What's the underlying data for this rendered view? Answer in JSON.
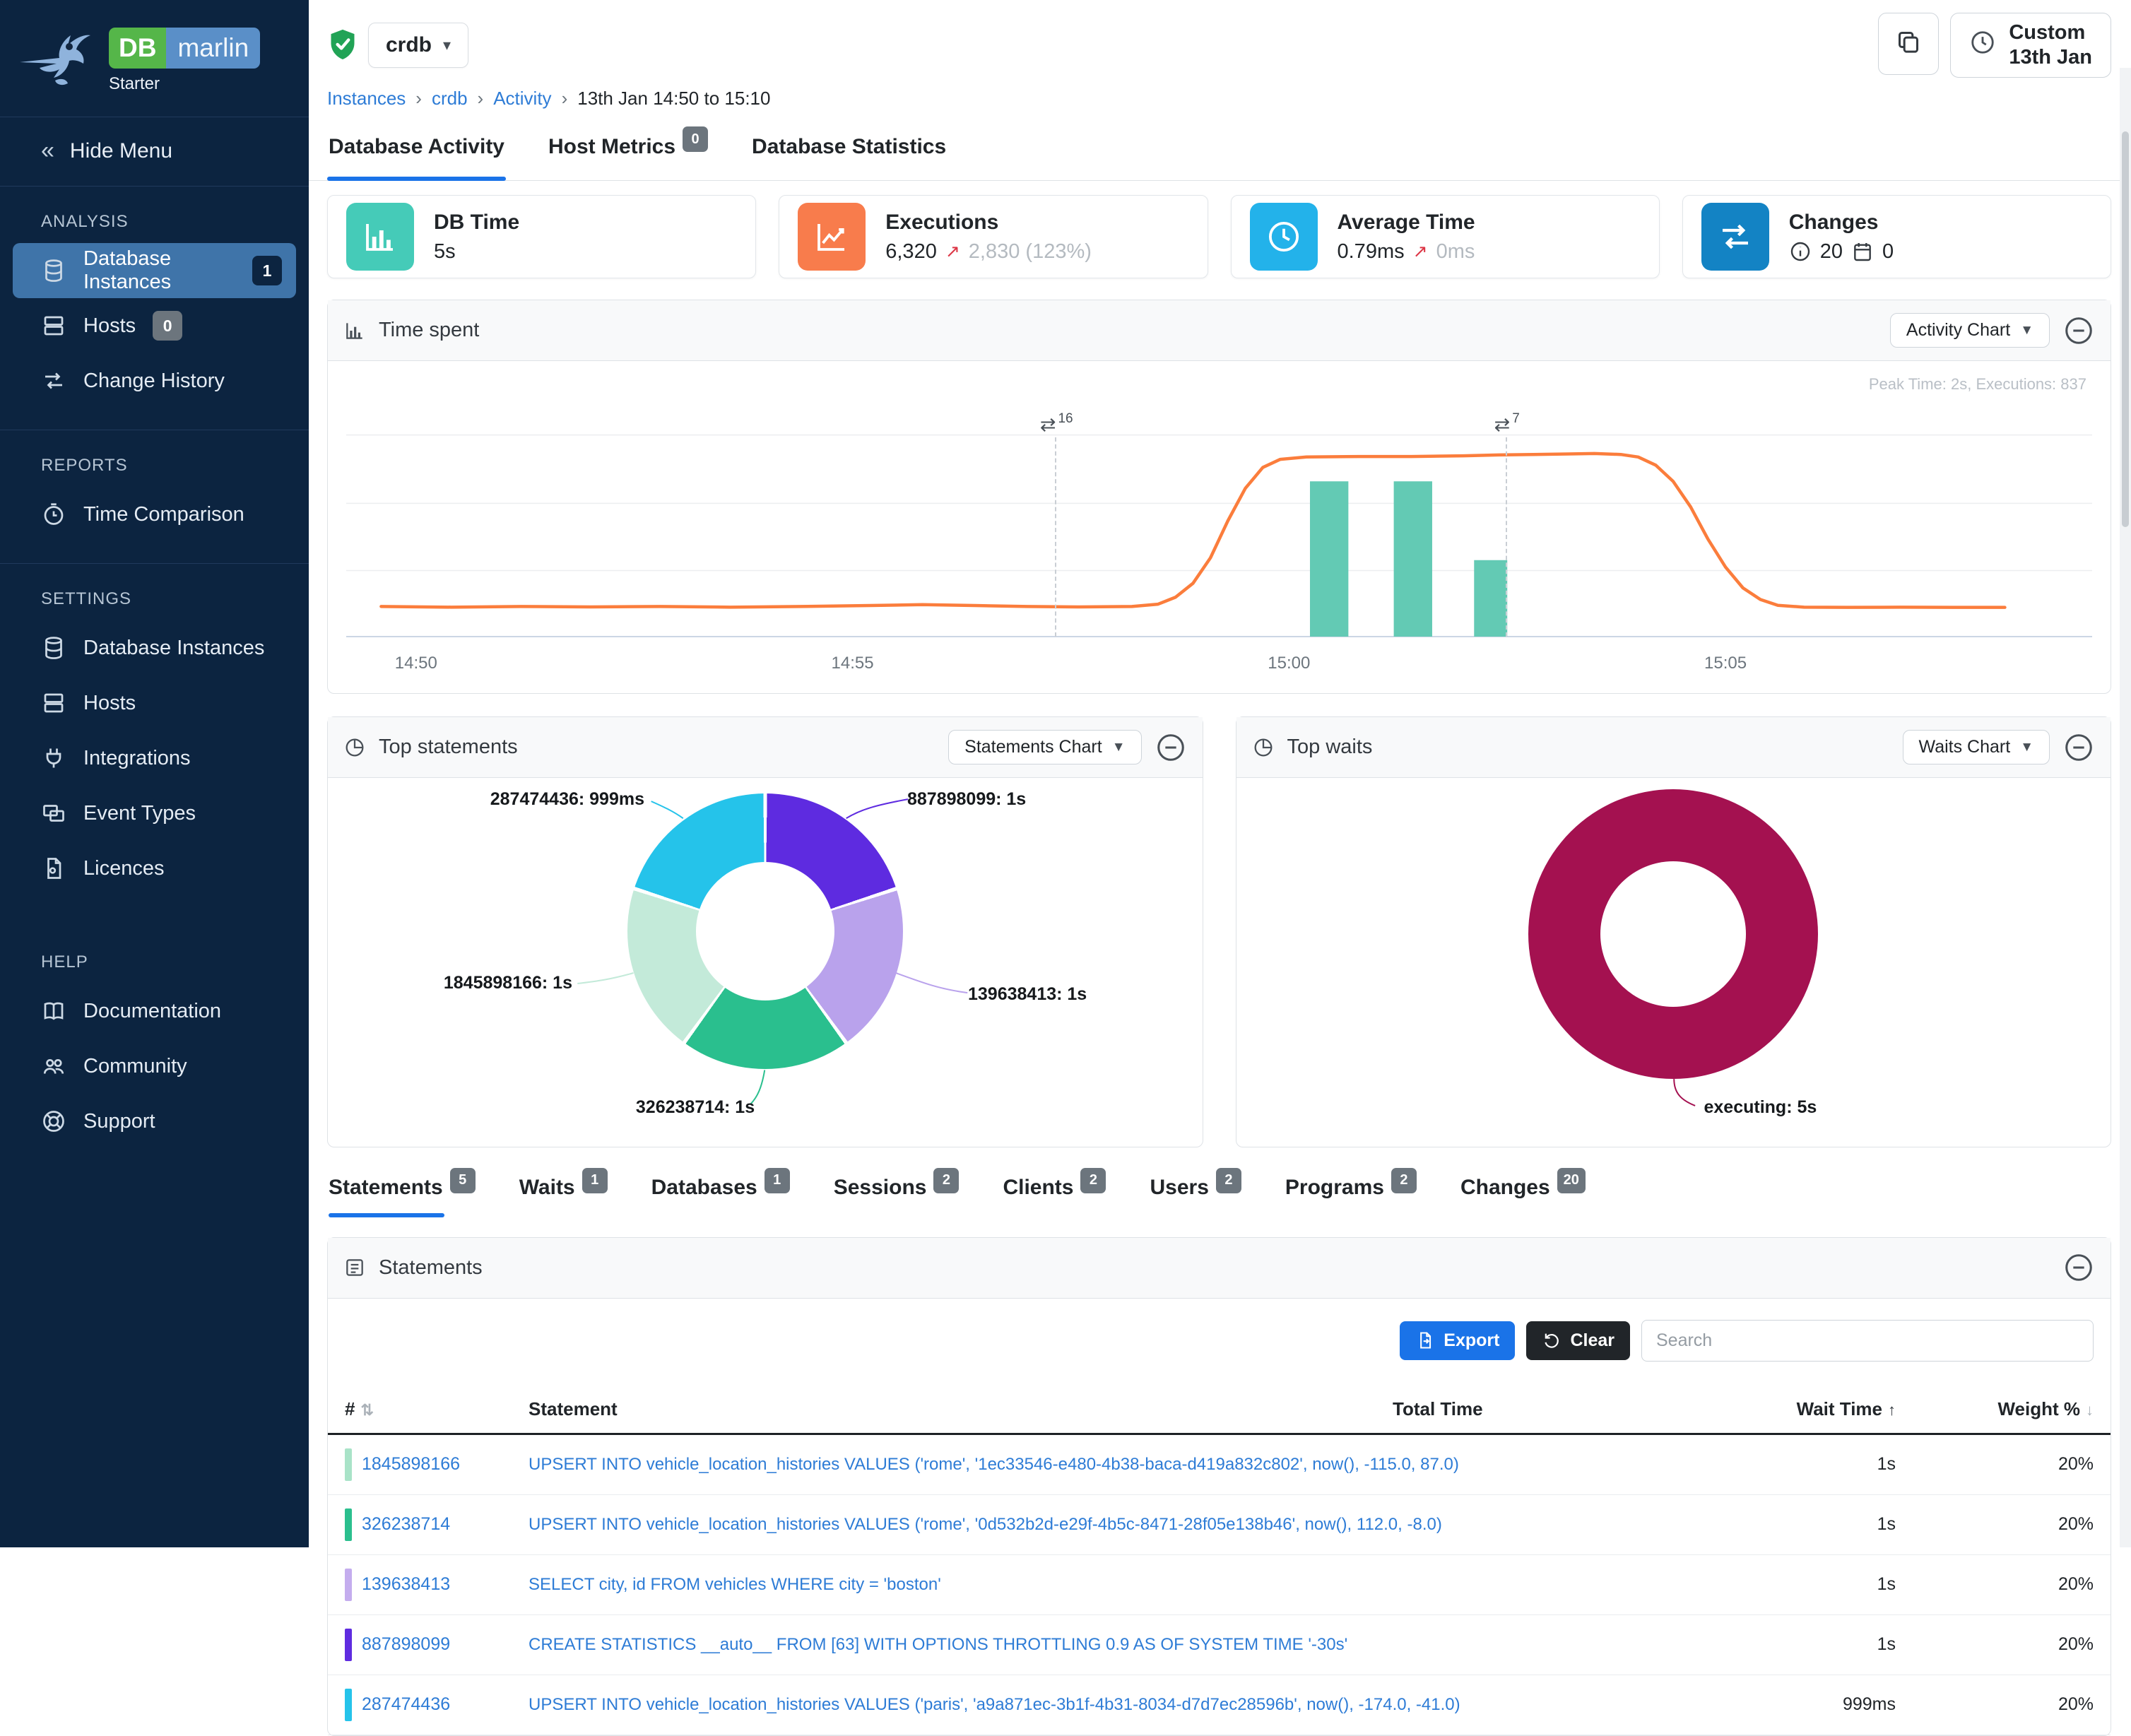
{
  "sidebar": {
    "brand": {
      "db": "DB",
      "marlin": "marlin",
      "tier": "Starter"
    },
    "hide_menu": "Hide Menu",
    "sections": [
      {
        "title": "ANALYSIS",
        "items": [
          {
            "label": "Database Instances",
            "badge": "1"
          },
          {
            "label": "Hosts",
            "badge": "0"
          },
          {
            "label": "Change History"
          }
        ]
      },
      {
        "title": "REPORTS",
        "items": [
          {
            "label": "Time Comparison"
          }
        ]
      },
      {
        "title": "SETTINGS",
        "items": [
          {
            "label": "Database Instances"
          },
          {
            "label": "Hosts"
          },
          {
            "label": "Integrations"
          },
          {
            "label": "Event Types"
          },
          {
            "label": "Licences"
          }
        ]
      },
      {
        "title": "HELP",
        "items": [
          {
            "label": "Documentation"
          },
          {
            "label": "Community"
          },
          {
            "label": "Support"
          }
        ]
      }
    ]
  },
  "header": {
    "instance": "crdb",
    "breadcrumb": [
      "Instances",
      "crdb",
      "Activity",
      "13th Jan 14:50 to 15:10"
    ],
    "time_range_button": {
      "line1": "Custom",
      "line2": "13th Jan"
    }
  },
  "tabs": [
    {
      "label": "Database Activity"
    },
    {
      "label": "Host Metrics",
      "badge": "0"
    },
    {
      "label": "Database Statistics"
    }
  ],
  "kpis": [
    {
      "title": "DB Time",
      "value": "5s",
      "color": "#45cbb8"
    },
    {
      "title": "Executions",
      "value": "6,320",
      "arrow": "↗",
      "delta": "2,830 (123%)",
      "color": "#f87c4c"
    },
    {
      "title": "Average Time",
      "value": "0.79ms",
      "arrow": "↗",
      "delta": "0ms",
      "color": "#23b2ea"
    },
    {
      "title": "Changes",
      "info_count": "20",
      "event_count": "0",
      "color": "#1383c4"
    }
  ],
  "panels": {
    "time_spent": {
      "title": "Time spent",
      "chart_select": "Activity Chart"
    },
    "top_statements": {
      "title": "Top statements",
      "chart_select": "Statements Chart"
    },
    "top_waits": {
      "title": "Top waits",
      "chart_select": "Waits Chart"
    }
  },
  "detail_tabs": [
    {
      "label": "Statements",
      "badge": "5"
    },
    {
      "label": "Waits",
      "badge": "1"
    },
    {
      "label": "Databases",
      "badge": "1"
    },
    {
      "label": "Sessions",
      "badge": "2"
    },
    {
      "label": "Clients",
      "badge": "2"
    },
    {
      "label": "Users",
      "badge": "2"
    },
    {
      "label": "Programs",
      "badge": "2"
    },
    {
      "label": "Changes",
      "badge": "20"
    }
  ],
  "statements_panel": {
    "title": "Statements",
    "export_label": "Export",
    "clear_label": "Clear",
    "search_placeholder": "Search",
    "columns": {
      "num": "#",
      "statement": "Statement",
      "total_time": "Total Time",
      "wait_time": "Wait Time",
      "weight": "Weight %"
    },
    "bar_color": "#a41150",
    "rows": [
      {
        "id": "1845898166",
        "chip_color": "#a9e3c8",
        "statement": "UPSERT INTO vehicle_location_histories VALUES ('rome', '1ec33546-e480-4b38-baca-d419a832c802', now(), -115.0, 87.0)",
        "wait_time": "1s",
        "weight": "20%"
      },
      {
        "id": "326238714",
        "chip_color": "#2bbf8e",
        "statement": "UPSERT INTO vehicle_location_histories VALUES ('rome', '0d532b2d-e29f-4b5c-8471-28f05e138b46', now(), 112.0, -8.0)",
        "wait_time": "1s",
        "weight": "20%"
      },
      {
        "id": "139638413",
        "chip_color": "#c4adee",
        "statement": "SELECT city, id FROM vehicles WHERE city = 'boston'",
        "wait_time": "1s",
        "weight": "20%"
      },
      {
        "id": "887898099",
        "chip_color": "#5f2ce0",
        "statement": "CREATE STATISTICS __auto__ FROM [63] WITH OPTIONS THROTTLING 0.9 AS OF SYSTEM TIME '-30s'",
        "wait_time": "1s",
        "weight": "20%"
      },
      {
        "id": "287474436",
        "chip_color": "#25c3ea",
        "statement": "UPSERT INTO vehicle_location_histories VALUES ('paris', 'a9a871ec-3b1f-4b31-8034-d7d7ec28596b', now(), -174.0, -41.0)",
        "wait_time": "999ms",
        "weight": "20%"
      }
    ]
  },
  "chart_data": [
    {
      "id": "time_spent",
      "type": "line",
      "title": "Time spent",
      "note": "Peak Time: 2s, Executions: 837",
      "x_ticks": [
        "14:50",
        "14:55",
        "15:00",
        "15:05"
      ],
      "ylim": [
        0,
        2
      ],
      "annotations": [
        {
          "x_pct": 40.6,
          "label": "16"
        },
        {
          "x_pct": 66.4,
          "label": "7"
        }
      ],
      "series": [
        {
          "name": "Time spent",
          "type": "line",
          "color": "#fb7d3c",
          "points_pct": [
            [
              2,
              87
            ],
            [
              6,
              87.3
            ],
            [
              10,
              87
            ],
            [
              14,
              87.2
            ],
            [
              18,
              87
            ],
            [
              22,
              87.3
            ],
            [
              26,
              87
            ],
            [
              30,
              86.6
            ],
            [
              33,
              86.2
            ],
            [
              36,
              86.6
            ],
            [
              39,
              87
            ],
            [
              42,
              87.2
            ],
            [
              45,
              87
            ],
            [
              46.5,
              86
            ],
            [
              47.5,
              83
            ],
            [
              48.5,
              77
            ],
            [
              49.5,
              66
            ],
            [
              50.5,
              50
            ],
            [
              51.5,
              36
            ],
            [
              52.5,
              27
            ],
            [
              53.5,
              23.5
            ],
            [
              55,
              22.5
            ],
            [
              58,
              22.3
            ],
            [
              61,
              22.3
            ],
            [
              64,
              22
            ],
            [
              66,
              21.6
            ],
            [
              68,
              21.4
            ],
            [
              70,
              21.2
            ],
            [
              71.5,
              21
            ],
            [
              73,
              21.4
            ],
            [
              74,
              22.5
            ],
            [
              75,
              26
            ],
            [
              76,
              33
            ],
            [
              77,
              44
            ],
            [
              78,
              58
            ],
            [
              79,
              70
            ],
            [
              80,
              79
            ],
            [
              81,
              84
            ],
            [
              82,
              86.5
            ],
            [
              83.5,
              87.3
            ],
            [
              86,
              87.4
            ],
            [
              89,
              87.3
            ],
            [
              92,
              87.4
            ],
            [
              95,
              87.4
            ]
          ]
        },
        {
          "name": "Executions",
          "type": "bar",
          "color": "#63cab4",
          "bars_pct": [
            {
              "x": 55.2,
              "w": 2.2,
              "h": 67
            },
            {
              "x": 60.0,
              "w": 2.2,
              "h": 67
            },
            {
              "x": 64.6,
              "w": 1.9,
              "h": 33
            }
          ]
        }
      ]
    },
    {
      "id": "top_statements",
      "type": "pie",
      "title": "Top statements",
      "slices": [
        {
          "label": "887898099: 1s",
          "value": 1,
          "color": "#5e2be0"
        },
        {
          "label": "139638413: 1s",
          "value": 1,
          "color": "#b9a2ec"
        },
        {
          "label": "326238714: 1s",
          "value": 1,
          "color": "#2abf8e"
        },
        {
          "label": "1845898166: 1s",
          "value": 1,
          "color": "#c3ead9"
        },
        {
          "label": "287474436: 999ms",
          "value": 0.999,
          "color": "#25c3ea"
        }
      ]
    },
    {
      "id": "top_waits",
      "type": "pie",
      "title": "Top waits",
      "slices": [
        {
          "label": "executing: 5s",
          "value": 5,
          "color": "#a41150"
        }
      ]
    }
  ]
}
